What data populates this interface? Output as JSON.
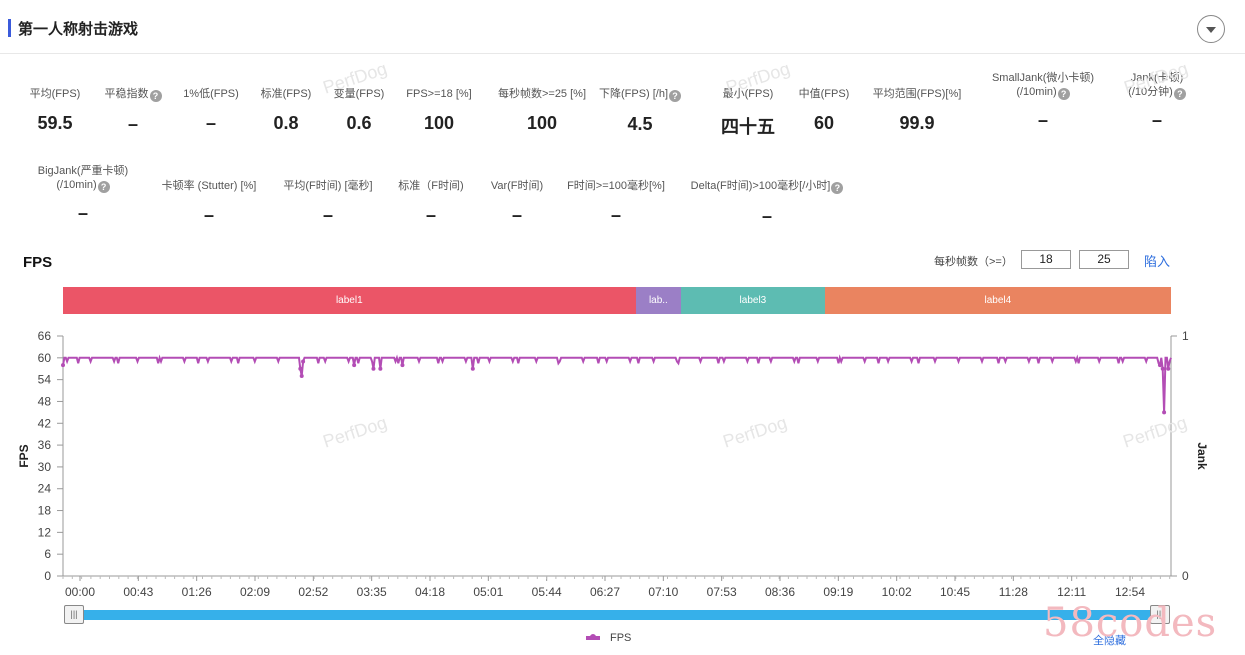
{
  "header": {
    "title": "第一人称射击游戏"
  },
  "metrics_row1": [
    {
      "label": "平均(FPS)",
      "value": "59.5",
      "help": false
    },
    {
      "label": "平稳指数",
      "value": "–",
      "help": true
    },
    {
      "label": "1%低(FPS)",
      "value": "–",
      "help": false
    },
    {
      "label": "标准(FPS)",
      "value": "0.8",
      "help": false
    },
    {
      "label": "变量(FPS)",
      "value": "0.6",
      "help": false
    },
    {
      "label": "FPS>=18 [%]",
      "value": "100",
      "help": false
    },
    {
      "label": "每秒帧数>=25 [%]",
      "value": "100",
      "help": false
    },
    {
      "label": "下降(FPS) [/h]",
      "value": "4.5",
      "help": true
    },
    {
      "label": "最小(FPS)",
      "value": "四十五",
      "help": false
    },
    {
      "label": "中值(FPS)",
      "value": "60",
      "help": false
    },
    {
      "label": "平均范围(FPS)[%]",
      "value": "99.9",
      "help": false
    },
    {
      "label": "SmallJank(微小卡顿)",
      "label2": "(/10min)",
      "value": "–",
      "help": true
    },
    {
      "label": "Jank(卡顿)",
      "label2": "(/10分钟)",
      "value": "–",
      "help": true
    }
  ],
  "metrics_row2": [
    {
      "label": "BigJank(严重卡顿)",
      "label2": "(/10min)",
      "value": "–",
      "help": true
    },
    {
      "label": "卡顿率 (Stutter) [%]",
      "value": "–",
      "help": false
    },
    {
      "label": "平均(F时间) [毫秒]",
      "value": "–",
      "help": false
    },
    {
      "label": "标准（F时间)",
      "value": "–",
      "help": false
    },
    {
      "label": "Var(F时间)",
      "value": "–",
      "help": false
    },
    {
      "label": "F时间>=100毫秒[%]",
      "value": "–",
      "help": false
    },
    {
      "label": "Delta(F时间)>100毫秒[/小时]",
      "value": "–",
      "help": true
    }
  ],
  "fps_section": {
    "title": "FPS",
    "threshold_label": "每秒帧数（>=）",
    "threshold_low": "18",
    "threshold_high": "25",
    "link": "陷入"
  },
  "labels": [
    {
      "name": "label1",
      "color": "#eb5567"
    },
    {
      "name": "lab..",
      "color": "#9b7fc6"
    },
    {
      "name": "label3",
      "color": "#5dbcb2"
    },
    {
      "name": "label4",
      "color": "#ea8460"
    }
  ],
  "watermark": "PerfDog",
  "brand_mark": "58codes",
  "legend": {
    "series": "FPS",
    "hide_all": "全隐藏"
  },
  "chart_data": {
    "type": "line",
    "ylabel": "FPS",
    "y2label": "Jank",
    "ylim": [
      0,
      66
    ],
    "yticks": [
      0,
      6,
      12,
      18,
      24,
      30,
      36,
      42,
      48,
      54,
      60,
      66
    ],
    "y2lim": [
      0,
      1
    ],
    "y2ticks": [
      0,
      1
    ],
    "xlim_seconds": [
      0,
      803
    ],
    "xticks": [
      "00:00",
      "00:43",
      "01:26",
      "02:09",
      "02:52",
      "03:35",
      "04:18",
      "05:01",
      "05:44",
      "06:27",
      "07:10",
      "07:53",
      "08:36",
      "09:19",
      "10:02",
      "10:45",
      "11:28",
      "12:11",
      "12:54"
    ],
    "label_segments": [
      {
        "label": "label1",
        "start_s": 0,
        "end_s": 415
      },
      {
        "label": "lab..",
        "start_s": 415,
        "end_s": 448
      },
      {
        "label": "label3",
        "start_s": 448,
        "end_s": 552
      },
      {
        "label": "label4",
        "start_s": 552,
        "end_s": 803
      }
    ],
    "series": [
      {
        "name": "FPS",
        "color": "#b34db5",
        "baseline": 60,
        "points": [
          {
            "t": 0,
            "fps": 58
          },
          {
            "t": 172,
            "fps": 57
          },
          {
            "t": 173,
            "fps": 55
          },
          {
            "t": 174,
            "fps": 59
          },
          {
            "t": 211,
            "fps": 58
          },
          {
            "t": 225,
            "fps": 57
          },
          {
            "t": 230,
            "fps": 57
          },
          {
            "t": 246,
            "fps": 58
          },
          {
            "t": 297,
            "fps": 57
          },
          {
            "t": 795,
            "fps": 58
          },
          {
            "t": 797,
            "fps": 57
          },
          {
            "t": 798,
            "fps": 45
          },
          {
            "t": 801,
            "fps": 57
          }
        ]
      }
    ],
    "grid": false
  }
}
